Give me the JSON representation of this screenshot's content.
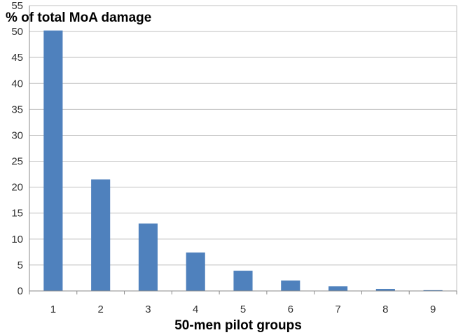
{
  "chart_data": {
    "type": "bar",
    "title": "",
    "ylabel": "% of total MoA damage",
    "xlabel": "50-men pilot groups",
    "categories": [
      "1",
      "2",
      "3",
      "4",
      "5",
      "6",
      "7",
      "8",
      "9"
    ],
    "values": [
      50.2,
      21.5,
      13.0,
      7.4,
      3.9,
      2.0,
      0.9,
      0.4,
      0.15
    ],
    "ylim": [
      0,
      55
    ],
    "yticks": [
      0,
      5,
      10,
      15,
      20,
      25,
      30,
      35,
      40,
      45,
      50,
      55
    ],
    "grid": true,
    "legend": "none",
    "bar_color": "#4F81BD",
    "grid_color": "#C0C0C0"
  }
}
